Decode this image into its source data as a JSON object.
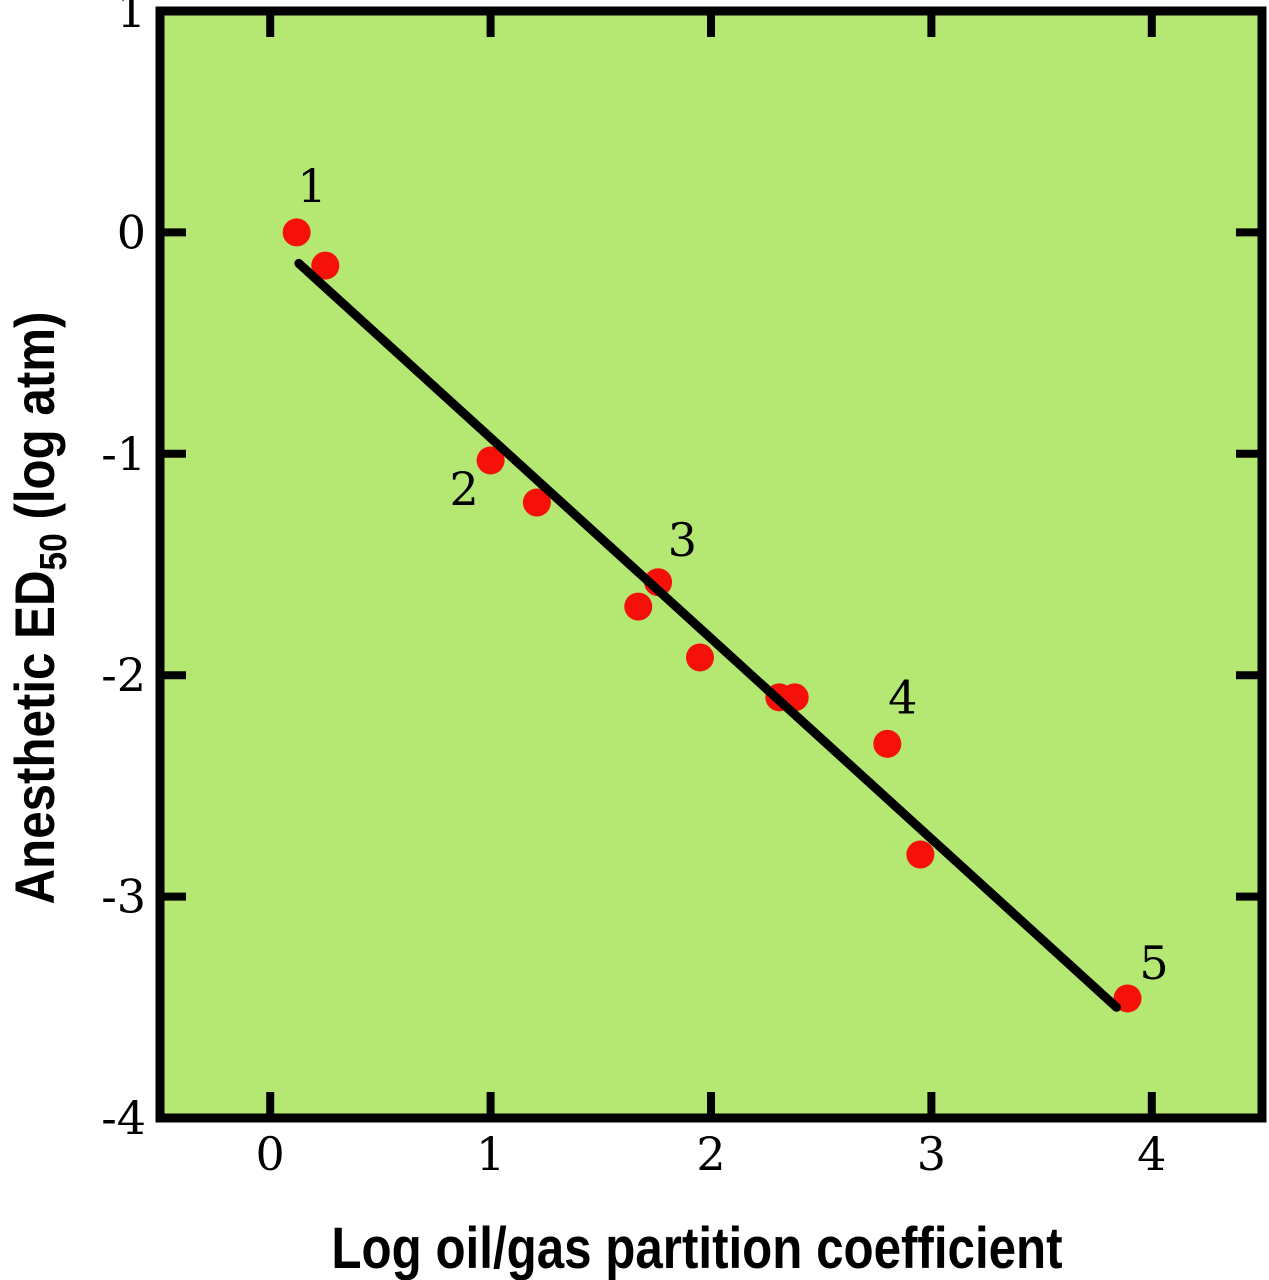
{
  "figure": {
    "background": "#ffffff",
    "plot_background": "#b4e873",
    "point_color": "#f5100a",
    "line_color": "#000000",
    "axis_color": "#000000"
  },
  "chart_data": {
    "type": "scatter",
    "title": "",
    "xlabel": "Log oil/gas partition coefficient",
    "ylabel": "Anesthetic ED50 (log atm)",
    "ylabel_parts": {
      "pre": "Anesthetic ED",
      "sub": "50",
      "post": " (log atm)"
    },
    "xlim": [
      -0.5,
      4.5
    ],
    "ylim": [
      -4,
      1
    ],
    "x_ticks": [
      0,
      1,
      2,
      3,
      4
    ],
    "y_ticks": [
      1,
      0,
      -1,
      -2,
      -3,
      -4
    ],
    "grid": false,
    "legend": "none",
    "points": [
      {
        "x": 0.12,
        "y": 0.0
      },
      {
        "x": 0.25,
        "y": -0.15
      },
      {
        "x": 1.0,
        "y": -1.03
      },
      {
        "x": 1.21,
        "y": -1.22
      },
      {
        "x": 1.67,
        "y": -1.69
      },
      {
        "x": 1.76,
        "y": -1.58
      },
      {
        "x": 1.95,
        "y": -1.92
      },
      {
        "x": 2.31,
        "y": -2.1
      },
      {
        "x": 2.38,
        "y": -2.1
      },
      {
        "x": 2.8,
        "y": -2.31
      },
      {
        "x": 2.95,
        "y": -2.81
      },
      {
        "x": 3.89,
        "y": -3.46
      }
    ],
    "fit_line": {
      "x1": 0.13,
      "y1": -0.14,
      "x2": 3.84,
      "y2": -3.5
    },
    "annotations": [
      {
        "label": "1",
        "x": 0.19,
        "y": 0.21
      },
      {
        "label": "2",
        "x": 0.88,
        "y": -1.16
      },
      {
        "label": "3",
        "x": 1.87,
        "y": -1.39
      },
      {
        "label": "4",
        "x": 2.87,
        "y": -2.1
      },
      {
        "label": "5",
        "x": 4.01,
        "y": -3.3
      }
    ]
  }
}
